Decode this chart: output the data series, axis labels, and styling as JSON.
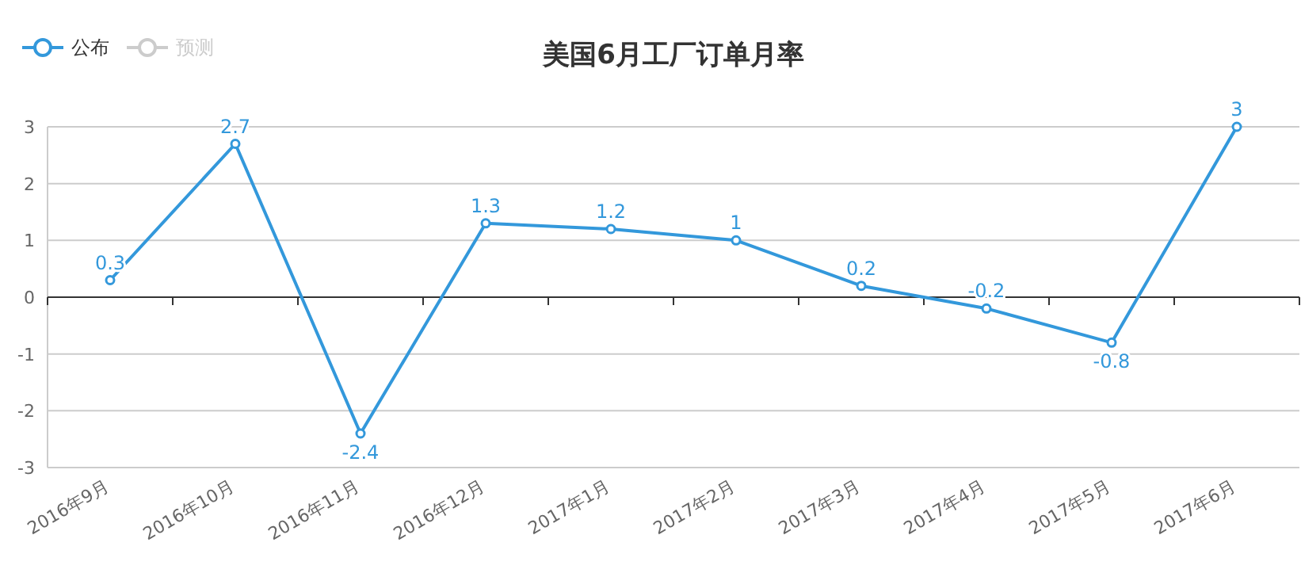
{
  "chart_data": {
    "type": "line",
    "title": "美国6月工厂订单月率",
    "categories": [
      "2016年9月",
      "2016年10月",
      "2016年11月",
      "2016年12月",
      "2017年1月",
      "2017年2月",
      "2017年3月",
      "2017年4月",
      "2017年5月",
      "2017年6月"
    ],
    "series": [
      {
        "name": "公布",
        "color": "#3398db",
        "values": [
          0.3,
          2.7,
          -2.4,
          1.3,
          1.2,
          1,
          0.2,
          -0.2,
          -0.8,
          3
        ]
      },
      {
        "name": "预测",
        "color": "#cccccc",
        "values": [
          null,
          null,
          null,
          null,
          null,
          null,
          null,
          null,
          null,
          null
        ]
      }
    ],
    "ylim": [
      -3,
      3
    ],
    "yticks": [
      -3,
      -2,
      -1,
      0,
      1,
      2,
      3
    ],
    "grid": "y",
    "legend": "top left",
    "marker": "circle",
    "data_labels": true
  }
}
